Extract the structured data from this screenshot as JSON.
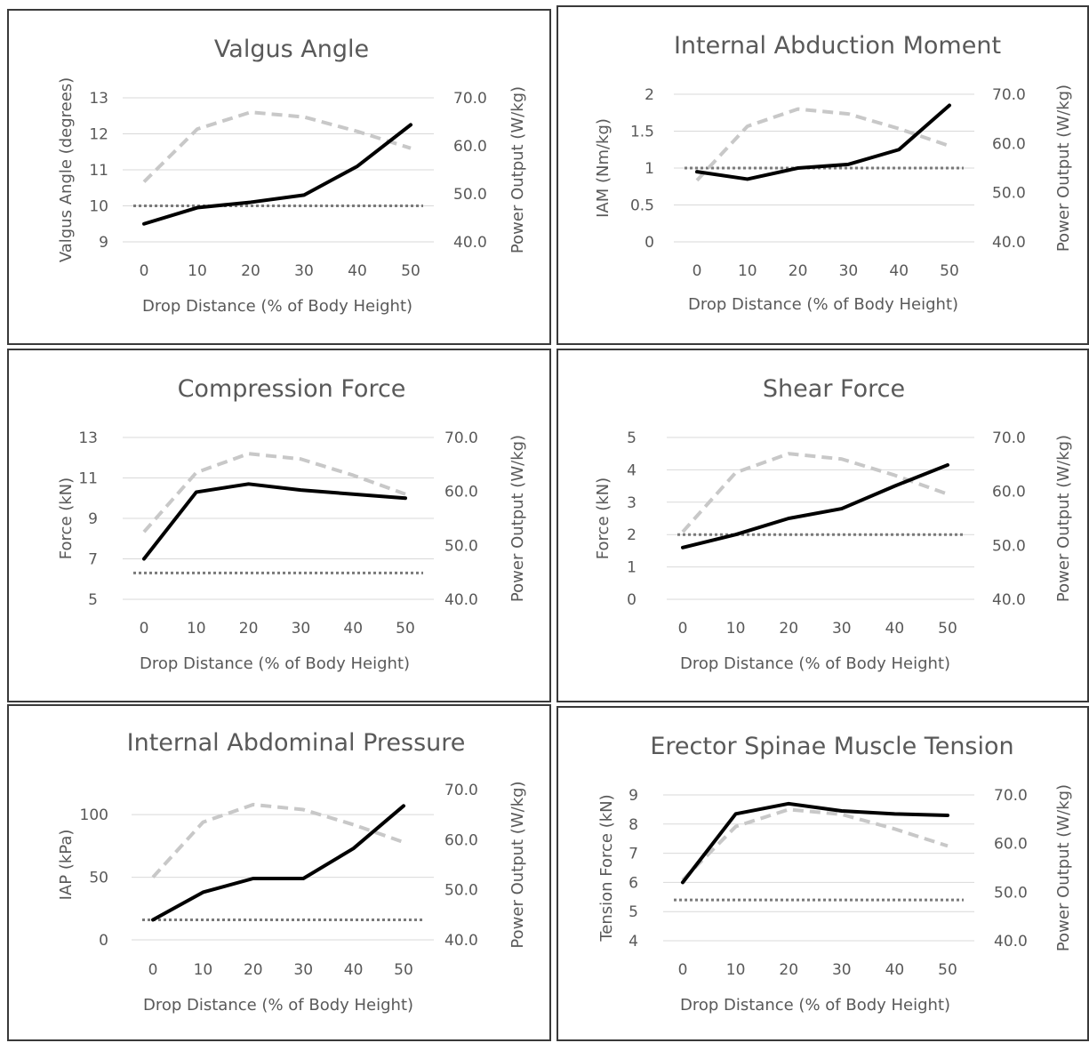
{
  "chart_data": [
    {
      "type": "line",
      "title": "Valgus Angle",
      "xlabel": "Drop Distance (% of Body Height)",
      "ylabel": "Valgus Angle (degrees)",
      "y2label": "Power Output (W/kg)",
      "x": [
        0,
        10,
        20,
        30,
        40,
        50
      ],
      "ylim": [
        9,
        13
      ],
      "yticks": [
        9,
        10,
        11,
        12,
        13
      ],
      "y2lim": [
        40,
        70
      ],
      "y2ticks": [
        "40.0",
        "50.0",
        "60.0",
        "70.0"
      ],
      "primary": [
        9.5,
        9.95,
        10.1,
        10.3,
        11.1,
        12.25
      ],
      "secondary": [
        52.5,
        63.5,
        67.0,
        66.0,
        63.0,
        59.5
      ],
      "reference": 10.0,
      "grid": true
    },
    {
      "type": "line",
      "title": "Internal Abduction Moment",
      "xlabel": "Drop Distance (% of Body Height)",
      "ylabel": "IAM (Nm/kg)",
      "y2label": "Power Output (W/kg)",
      "x": [
        0,
        10,
        20,
        30,
        40,
        50
      ],
      "ylim": [
        0,
        2
      ],
      "yticks": [
        "0",
        "0.5",
        "1",
        "1.5",
        "2"
      ],
      "y2lim": [
        40,
        70
      ],
      "y2ticks": [
        "40.0",
        "50.0",
        "60.0",
        "70.0"
      ],
      "primary": [
        0.95,
        0.85,
        1.0,
        1.05,
        1.25,
        1.85
      ],
      "secondary": [
        52.5,
        63.5,
        67.0,
        66.0,
        63.0,
        59.5
      ],
      "reference": 1.0,
      "grid": true
    },
    {
      "type": "line",
      "title": "Compression Force",
      "xlabel": "Drop Distance (% of Body Height)",
      "ylabel": "Force (kN)",
      "y2label": "Power Output (W/kg)",
      "x": [
        0,
        10,
        20,
        30,
        40,
        50
      ],
      "ylim": [
        5,
        13
      ],
      "yticks": [
        5,
        7,
        9,
        11,
        13
      ],
      "y2lim": [
        40,
        70
      ],
      "y2ticks": [
        "40.0",
        "50.0",
        "60.0",
        "70.0"
      ],
      "primary": [
        7.0,
        10.3,
        10.7,
        10.4,
        10.2,
        10.0
      ],
      "secondary": [
        52.5,
        63.5,
        67.0,
        66.0,
        63.0,
        59.5
      ],
      "reference": 6.3,
      "grid": true
    },
    {
      "type": "line",
      "title": "Shear Force",
      "xlabel": "Drop Distance (% of Body Height)",
      "ylabel": "Force (kN)",
      "y2label": "Power Output (W/kg)",
      "x": [
        0,
        10,
        20,
        30,
        40,
        50
      ],
      "ylim": [
        0,
        5
      ],
      "yticks": [
        0,
        1,
        2,
        3,
        4,
        5
      ],
      "y2lim": [
        40,
        70
      ],
      "y2ticks": [
        "40.0",
        "50.0",
        "60.0",
        "70.0"
      ],
      "primary": [
        1.6,
        2.0,
        2.5,
        2.8,
        3.5,
        4.15
      ],
      "secondary": [
        52.5,
        63.5,
        67.0,
        66.0,
        63.0,
        59.5
      ],
      "reference": 2.0,
      "grid": true
    },
    {
      "type": "line",
      "title": "Internal Abdominal Pressure",
      "xlabel": "Drop Distance (% of Body Height)",
      "ylabel": "IAP (kPa)",
      "y2label": "Power Output (W/kg)",
      "x": [
        0,
        10,
        20,
        30,
        40,
        50
      ],
      "ylim": [
        0,
        120
      ],
      "yticks": [
        0,
        50,
        100
      ],
      "y2lim": [
        40,
        70
      ],
      "y2ticks": [
        "40.0",
        "50.0",
        "60.0",
        "70.0"
      ],
      "primary": [
        16,
        38,
        49,
        49,
        73,
        107
      ],
      "secondary": [
        52.5,
        63.5,
        67.0,
        66.0,
        63.0,
        59.5
      ],
      "reference": 16,
      "grid": true
    },
    {
      "type": "line",
      "title": "Erector Spinae Muscle Tension",
      "xlabel": "Drop Distance (% of Body Height)",
      "ylabel": "Tension Force (kN)",
      "y2label": "Power Output (W/kg)",
      "x": [
        0,
        10,
        20,
        30,
        40,
        50
      ],
      "ylim": [
        4,
        9
      ],
      "yticks": [
        4,
        5,
        6,
        7,
        8,
        9
      ],
      "y2lim": [
        40,
        70
      ],
      "y2ticks": [
        "40.0",
        "50.0",
        "60.0",
        "70.0"
      ],
      "primary": [
        6.0,
        8.35,
        8.7,
        8.45,
        8.35,
        8.3
      ],
      "secondary": [
        52.5,
        63.5,
        67.0,
        66.0,
        63.0,
        59.5
      ],
      "reference": 5.4,
      "grid": true
    }
  ]
}
